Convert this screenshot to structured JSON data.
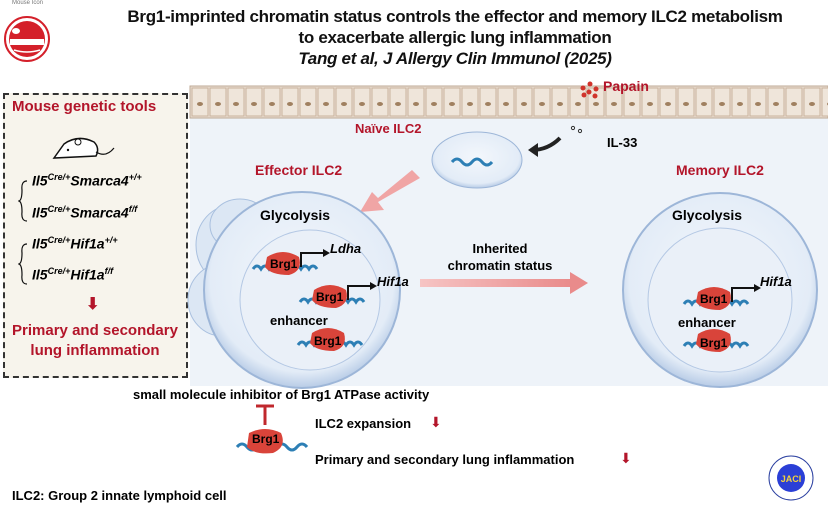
{
  "logo": {
    "caption": "Mouse Icon"
  },
  "header": {
    "title_line1": "Brg1-imprinted chromatin status controls the effector and memory ILC2 metabolism",
    "title_line2": "to exacerbate allergic lung inflammation",
    "citation": "Tang et al, J Allergy Clin Immunol (2025)"
  },
  "left_panel": {
    "title": "Mouse genetic tools",
    "genotypes": [
      {
        "base": "Il5",
        "sup1": "Cre/+",
        "gene": "Smarca4",
        "sup2": "+/+"
      },
      {
        "base": "Il5",
        "sup1": "Cre/+",
        "gene": "Smarca4",
        "sup2": "f/f"
      },
      {
        "base": "Il5",
        "sup1": "Cre/+",
        "gene": "Hif1a",
        "sup2": "+/+"
      },
      {
        "base": "Il5",
        "sup1": "Cre/+",
        "gene": "Hif1a",
        "sup2": "f/f"
      }
    ],
    "outcome_line1": "Primary and secondary",
    "outcome_line2": "lung inflammation"
  },
  "diagram": {
    "papain": "Papain",
    "il33": "IL-33",
    "naive": "Naïve ILC2",
    "effector": "Effector ILC2",
    "memory": "Memory ILC2",
    "glycolysis": "Glycolysis",
    "brg1": "Brg1",
    "ldha": "Ldha",
    "hif1a": "Hif1a",
    "enhancer": "enhancer",
    "inherited_line1": "Inherited",
    "inherited_line2": "chromatin status"
  },
  "bottom": {
    "inhibitor": "small molecule inhibitor of Brg1 ATPase activity",
    "expansion": "ILC2 expansion",
    "inflammation": "Primary and secondary lung inflammation",
    "footnote": "ILC2: Group 2 innate lymphoid cell"
  },
  "journal_seal": {
    "text": "JACI",
    "ring_text": "The Journal of Allergy & Clinical Immunology"
  },
  "colors": {
    "accent_red": "#b3152a",
    "protein_red": "#d9443a",
    "cell_blue": "#c9daf0",
    "panel_bg": "#f7f4ec"
  }
}
